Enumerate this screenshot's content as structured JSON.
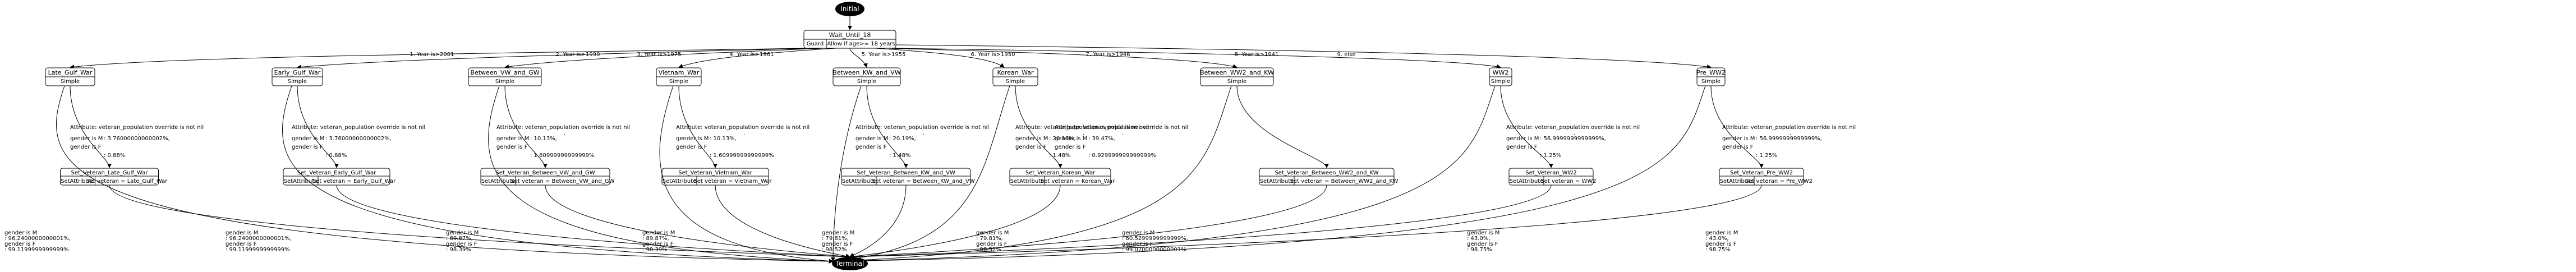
{
  "start": "Initial",
  "end": "Terminal",
  "root": {
    "title": "Wait_Until_18",
    "guard": "Guard",
    "guard_text": "Allow if age>= 18 years"
  },
  "edges": [
    "1. Year is>2001",
    "2. Year is>1990",
    "3. Year is>1975",
    "4. Year is>1961",
    "5. Year is>1955",
    "6. Year is>1950",
    "7. Year is>1946",
    "8. Year is>1941",
    "9. else"
  ],
  "branches": [
    {
      "title": "Late_Gulf_War",
      "type": "Simple",
      "attr": "Attribute: veteran_population override is not nil",
      "pct_m": ": 3.76000000000002%,",
      "pct_f": ": 0.88%",
      "set_title": "Set_Veteran_Late_Gulf_War",
      "set_action": "Set veteran = Late_Gulf_War",
      "exit": [
        "gender is M",
        ": 96.2400000000001%,",
        "gender is F",
        ": 99.1199999999999%"
      ]
    },
    {
      "title": "Early_Gulf_War",
      "type": "Simple",
      "attr": "Attribute: veteran_population override is not nil",
      "pct_m": ": 3.76000000000002%,",
      "pct_f": ": 0.88%",
      "set_title": "Set_Veteran_Early_Gulf_War",
      "set_action": "Set veteran = Early_Gulf_War",
      "exit": [
        "gender is M",
        ": 96.2400000000001%,",
        "gender is F",
        ": 99.1199999999999%"
      ]
    },
    {
      "title": "Between_VW_and_GW",
      "type": "Simple",
      "attr": "Attribute: veteran_population override is not nil",
      "pct_m": ": 10.13%,",
      "pct_f": ": 1.60999999999999%",
      "set_title": "Set_Veteran_Between_VW_and_GW",
      "set_action": "Set veteran = Between_VW_and_GW",
      "exit": [
        "gender is M",
        ": 89.87%,",
        "gender is F",
        ": 98.39%"
      ]
    },
    {
      "title": "Vietnam_War",
      "type": "Simple",
      "attr": "Attribute: veteran_population override is not nil",
      "pct_m": ": 10.13%,",
      "pct_f": ": 1.60999999999999%",
      "set_title": "Set_Veteran_Vietnam_War",
      "set_action": "Set veteran = Vietnam_War",
      "exit": [
        "gender is M",
        ": 89.87%,",
        "gender is F",
        ": 98.39%"
      ]
    },
    {
      "title": "Between_KW_and_VW",
      "type": "Simple",
      "attr": "Attribute: veteran_population override is not nil",
      "pct_m": ": 20.19%,",
      "pct_f": ": 1.48%",
      "set_title": "Set_Veteran_Between_KW_and_VW",
      "set_action": "Set veteran = Between_KW_and_VW",
      "exit": [
        "gender is M",
        ": 79.81%,",
        "gender is F",
        ": 98.52%"
      ]
    },
    {
      "title": "Korean_War",
      "type": "Simple",
      "attr": "Attribute: veteran_population override is not nil",
      "pct_m": ": 20.19%,",
      "pct_f": ": 1.48%",
      "set_title": "Set_Veteran_Korean_War",
      "set_action": "Set veteran = Korean_War",
      "exit": [
        "gender is M",
        ": 79.81%,",
        "gender is F",
        ": 98.52%"
      ]
    },
    {
      "title": "Between_WW2_and_KW",
      "type": "Simple",
      "attr": "Attribute: veteran_population override is not nil",
      "pct_m": ": 39.47%,",
      "pct_f": ": 0.929999999999999%",
      "set_title": "Set_Veteran_Between_WW2_and_KW",
      "set_action": "Set veteran = Between_WW2_and_KW",
      "exit": [
        "gender is M",
        ": 60.5299999999999%,",
        "gender is F",
        ": 99.0700000000001%"
      ]
    },
    {
      "title": "WW2",
      "type": "Simple",
      "attr": "Attribute: veteran_population override is not nil",
      "pct_m": ": 56.9999999999999%,",
      "pct_f": ": 1.25%",
      "set_title": "Set_Veteran_WW2",
      "set_action": "Set veteran = WW2",
      "exit": [
        "gender is M",
        ": 43.0%,",
        "gender is F",
        ": 98.75%"
      ]
    },
    {
      "title": "Pre_WW2",
      "type": "Simple",
      "attr": "Attribute: veteran_population override is not nil",
      "pct_m": ": 56.9999999999999%,",
      "pct_f": ": 1.25%",
      "set_title": "Set_Veteran_Pre_WW2",
      "set_action": "Set veteran = Pre_WW2",
      "exit": [
        "gender is M",
        ": 43.0%,",
        "gender is F",
        ": 98.75%"
      ]
    }
  ],
  "gender_m": "gender is M",
  "gender_f": "gender is F",
  "set_attribute": "SetAttribute",
  "dot": "."
}
